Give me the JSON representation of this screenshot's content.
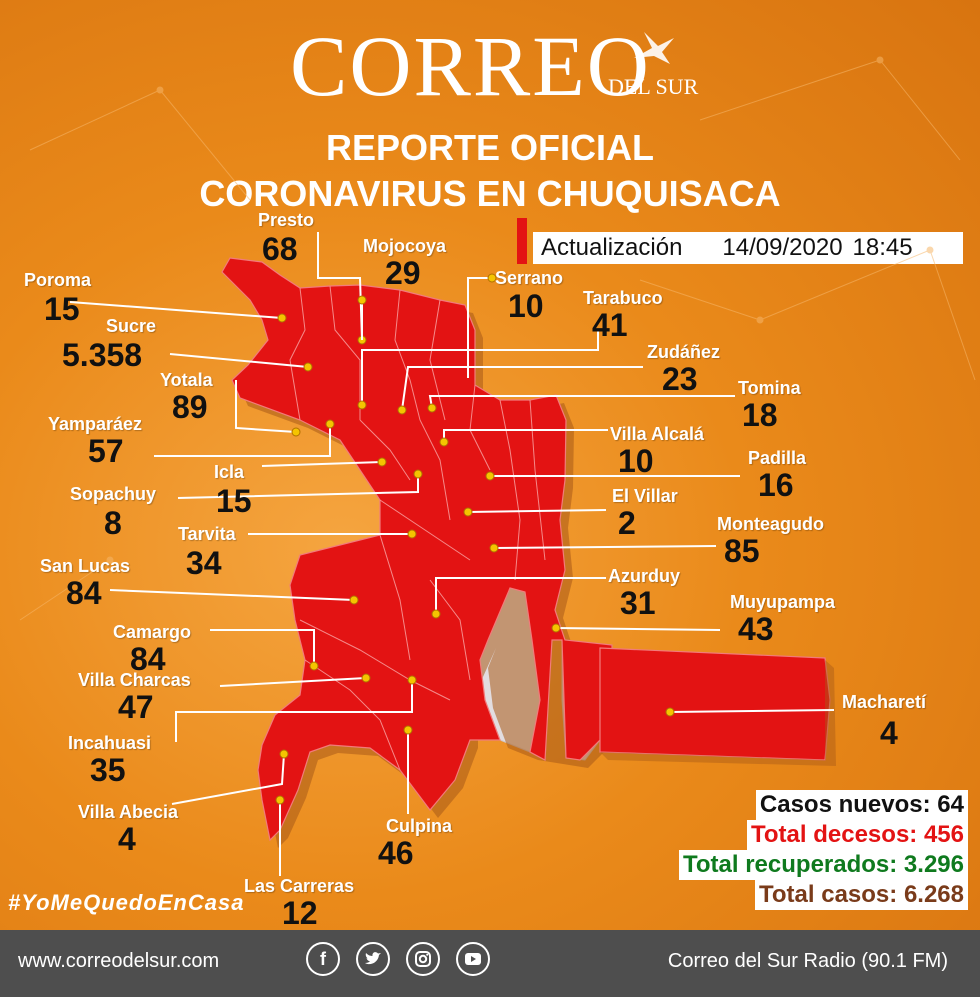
{
  "brand": {
    "name": "CORREO",
    "sub": "DEL SUR"
  },
  "title": {
    "line1": "REPORTE OFICIAL",
    "line2": "CORONAVIRUS EN CHUQUISACA"
  },
  "update": {
    "label": "Actualización",
    "date": "14/09/2020",
    "time": "18:45"
  },
  "municipalities": [
    {
      "name": "Presto",
      "value": "68"
    },
    {
      "name": "Mojocoya",
      "value": "29"
    },
    {
      "name": "Serrano",
      "value": "10"
    },
    {
      "name": "Poroma",
      "value": "15"
    },
    {
      "name": "Tarabuco",
      "value": "41"
    },
    {
      "name": "Sucre",
      "value": "5.358"
    },
    {
      "name": "Zudáñez",
      "value": "23"
    },
    {
      "name": "Yotala",
      "value": "89"
    },
    {
      "name": "Tomina",
      "value": "18"
    },
    {
      "name": "Yamparáez",
      "value": "57"
    },
    {
      "name": "Villa Alcalá",
      "value": "10"
    },
    {
      "name": "Icla",
      "value": "15"
    },
    {
      "name": "Padilla",
      "value": "16"
    },
    {
      "name": "Sopachuy",
      "value": "8"
    },
    {
      "name": "El Villar",
      "value": "2"
    },
    {
      "name": "Tarvita",
      "value": "34"
    },
    {
      "name": "Monteagudo",
      "value": "85"
    },
    {
      "name": "San Lucas",
      "value": "84"
    },
    {
      "name": "Azurduy",
      "value": "31"
    },
    {
      "name": "Muyupampa",
      "value": "43"
    },
    {
      "name": "Camargo",
      "value": "84"
    },
    {
      "name": "Villa Charcas",
      "value": "47"
    },
    {
      "name": "Macharetí",
      "value": "4"
    },
    {
      "name": "Incahuasi",
      "value": "35"
    },
    {
      "name": "Villa Abecia",
      "value": "4"
    },
    {
      "name": "Culpina",
      "value": "46"
    },
    {
      "name": "Las Carreras",
      "value": "12"
    }
  ],
  "stats": {
    "new_cases": "Casos nuevos: 64",
    "deaths": "Total decesos: 456",
    "recovered": "Total recuperados: 3.296",
    "total": "Total casos: 6.268"
  },
  "colors": {
    "background": "#ea8a1a",
    "map": "#e31313",
    "deaths": "#e31313",
    "recovered": "#0f7a1e",
    "total": "#7a3b1a"
  },
  "hashtag": "#YoMeQuedoEnCasa",
  "footer": {
    "website": "www.correodelsur.com",
    "radio": "Correo del Sur Radio (90.1 FM)",
    "social_icons": [
      "facebook-icon",
      "twitter-icon",
      "instagram-icon",
      "youtube-icon"
    ]
  }
}
